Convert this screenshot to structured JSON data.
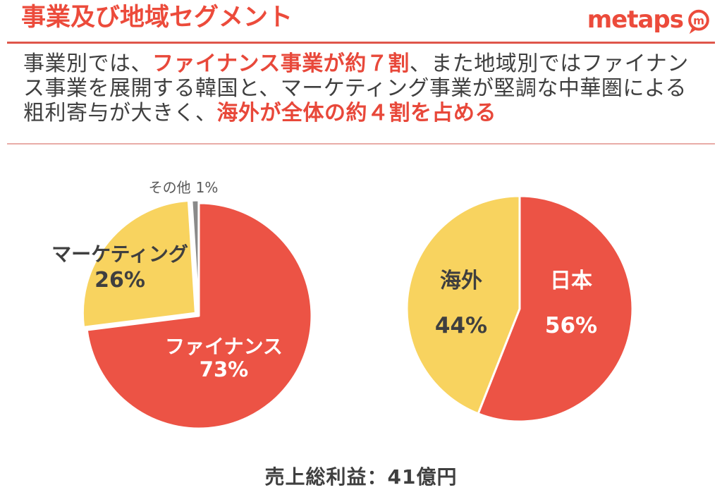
{
  "header": {
    "title": "事業及び地域セグメント",
    "logo_text": "metaps",
    "logo_icon_letter": "m"
  },
  "lead": {
    "segments": [
      {
        "text": "事業別では、",
        "em": false
      },
      {
        "text": "ファイナンス事業が約７割",
        "em": true
      },
      {
        "text": "、また地域別ではファイナンス事業を展開する韓国と、マーケティング事業が堅調な中華圏による粗利寄与が大きく、",
        "em": false
      },
      {
        "text": "海外が全体の約４割を占める",
        "em": true
      }
    ]
  },
  "footer": {
    "gross_profit": "売上総利益：41億円"
  },
  "colors": {
    "accent_red": "#EC4B3B",
    "pie_red": "#EC5345",
    "pie_yellow": "#F8D35F",
    "pie_gray": "#8A8A8A",
    "text_dark": "#3F3F3F",
    "divider_strong": "#DF564A",
    "divider_light": "#E9ACA7"
  },
  "chart_data": [
    {
      "type": "pie",
      "name": "business-segment",
      "start_angle": "top",
      "direction": "clockwise",
      "slices": [
        {
          "id": "finance",
          "label": "ファイナンス",
          "pct": "73%",
          "value": 73,
          "color": "#EC5345",
          "label_color": "#FFFFFF",
          "explode": 0
        },
        {
          "id": "marketing",
          "label": "マーケティング",
          "pct": "26%",
          "value": 26,
          "color": "#F8D35F",
          "label_color": "#3F3F3F",
          "explode": 6
        },
        {
          "id": "other",
          "label": "その他",
          "pct": "1%",
          "value": 1,
          "color": "#8A8A8A",
          "label_color": "#595959",
          "explode": 4
        }
      ]
    },
    {
      "type": "pie",
      "name": "region-segment",
      "start_angle": "top",
      "direction": "clockwise",
      "slices": [
        {
          "id": "japan",
          "label": "日本",
          "pct": "56%",
          "value": 56,
          "color": "#EC5345",
          "label_color": "#FFFFFF",
          "explode": 0
        },
        {
          "id": "overseas",
          "label": "海外",
          "pct": "44%",
          "value": 44,
          "color": "#F8D35F",
          "label_color": "#3F3F3F",
          "explode": 0
        }
      ]
    }
  ]
}
